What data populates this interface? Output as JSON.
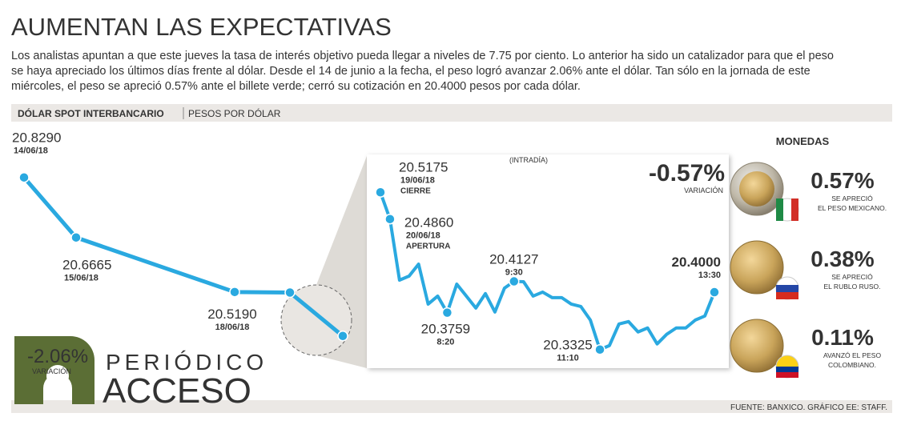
{
  "header": {
    "title": "AUMENTAN LAS EXPECTATIVAS",
    "paragraph": [
      "Los analistas apuntan a que este jueves la tasa de interés objetivo pueda llegar a niveles de 7.75 por ciento. Lo anterior ha sido un catalizador para que el peso",
      "se haya apreciado los últimos días frente al dólar. Desde el 14 de junio a la fecha, el peso logró avanzar 2.06% ante el dólar. Tan sólo en la jornada de este",
      "miércoles, el peso se apreció 0.57% ante el billete verde; cerró su cotización en 20.4000 pesos por cada dólar."
    ]
  },
  "section": {
    "label": "DÓLAR SPOT INTERBANCARIO",
    "unit": "PESOS POR DÓLAR"
  },
  "chart_data": [
    {
      "type": "line",
      "categories": [
        "14/06/18",
        "15/06/18",
        "18/06/18",
        null,
        null
      ],
      "values": [
        20.829,
        20.6665,
        20.519,
        20.5175,
        20.4
      ],
      "value_labels": [
        "20.8290",
        "20.6665",
        "20.5190",
        null,
        null
      ],
      "color": "#2aa9e0",
      "ylim": [
        20.38,
        20.85
      ],
      "change": "-2.06%",
      "change_label": "VARIACIÓN"
    },
    {
      "type": "line",
      "subtitle": "(INTRADÍA)",
      "categories": [
        "19/06/18",
        "20/06/18",
        null,
        null,
        null,
        null,
        null,
        "8:20",
        null,
        null,
        null,
        null,
        null,
        null,
        "9:30",
        null,
        null,
        null,
        null,
        null,
        null,
        null,
        null,
        "11:10",
        null,
        null,
        null,
        null,
        null,
        null,
        null,
        null,
        null,
        null,
        null,
        "13:30"
      ],
      "values": [
        20.5175,
        20.486,
        20.4142,
        20.4189,
        20.433,
        20.386,
        20.3954,
        20.3759,
        20.4095,
        20.3954,
        20.3813,
        20.3983,
        20.3767,
        20.4048,
        20.4127,
        20.4123,
        20.3954,
        20.4001,
        20.3936,
        20.3936,
        20.386,
        20.3832,
        20.3672,
        20.3325,
        20.3372,
        20.3626,
        20.3654,
        20.3532,
        20.3579,
        20.3391,
        20.3504,
        20.3579,
        20.3579,
        20.3672,
        20.372,
        20.4
      ],
      "value_labels": [
        "20.5175",
        "20.4860",
        null,
        null,
        null,
        null,
        null,
        "20.3759",
        null,
        null,
        null,
        null,
        null,
        null,
        "20.4127",
        null,
        null,
        null,
        null,
        null,
        null,
        null,
        null,
        "20.3325",
        null,
        null,
        null,
        null,
        null,
        null,
        null,
        null,
        null,
        null,
        null,
        "20.4000"
      ],
      "point_tags": [
        "CIERRE",
        "APERTURA",
        null,
        null,
        null,
        null,
        null,
        null,
        null,
        null,
        null,
        null,
        null,
        null,
        null,
        null,
        null,
        null,
        null,
        null,
        null,
        null,
        null,
        null,
        null,
        null,
        null,
        null,
        null,
        null,
        null,
        null,
        null,
        null,
        null,
        null
      ],
      "color": "#2aa9e0",
      "ylim": [
        20.32,
        20.53
      ],
      "change": "-0.57%",
      "change_label": "VARIACIÓN"
    }
  ],
  "currencies": {
    "title": "MONEDAS",
    "items": [
      {
        "value": "0.57%",
        "lines": [
          "SE APRECIÓ",
          "EL PESO MEXICANO."
        ]
      },
      {
        "value": "0.38%",
        "lines": [
          "SE APRECIÓ",
          "EL RUBLO RUSO."
        ]
      },
      {
        "value": "0.11%",
        "lines": [
          "AVANZÓ EL PESO",
          "COLOMBIANO."
        ]
      }
    ]
  },
  "logo": {
    "line1": "PERIÓDICO",
    "line2": "ACCESO"
  },
  "source": "FUENTE: BANXICO.  GRÁFICO EE: STAFF."
}
